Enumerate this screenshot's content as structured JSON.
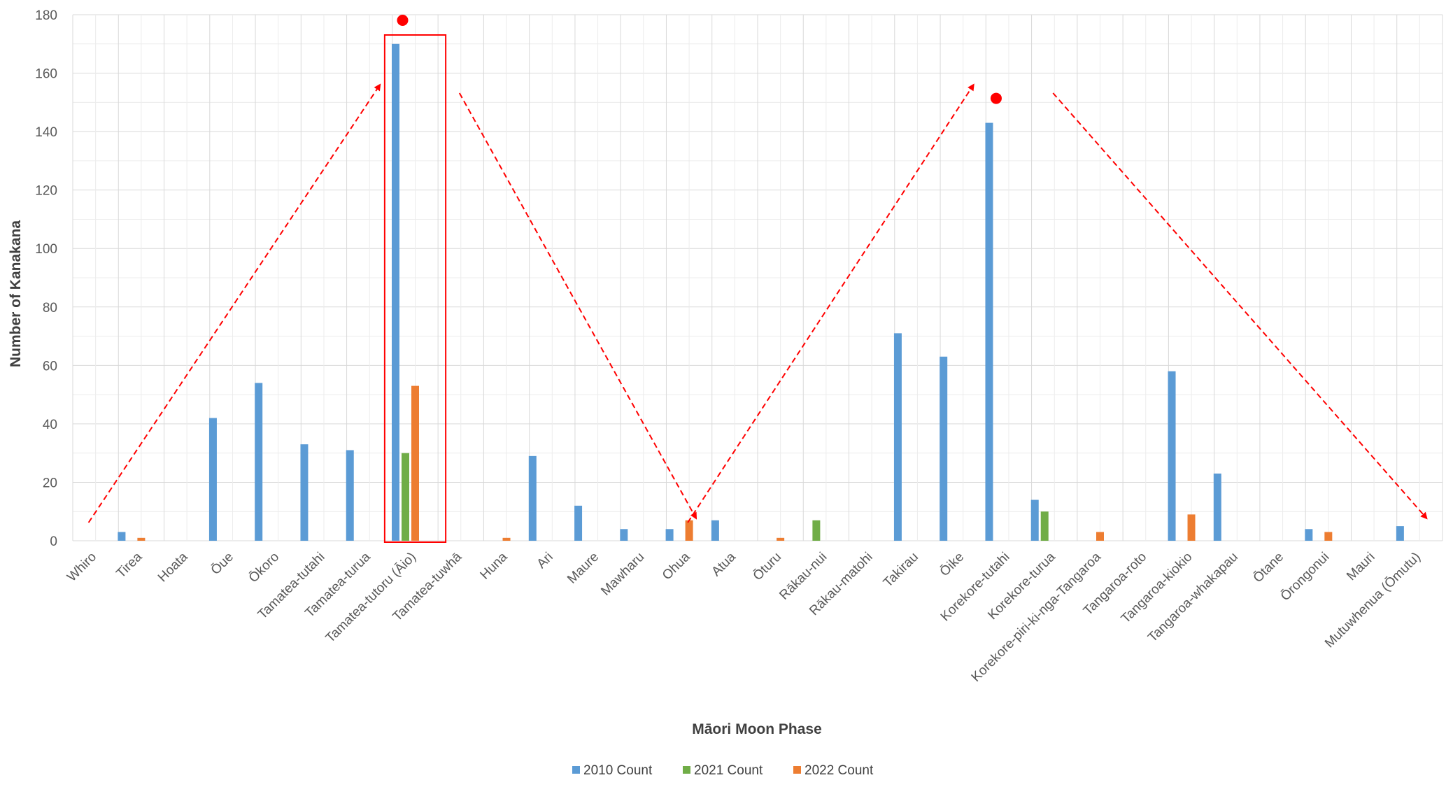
{
  "chart_data": {
    "type": "bar",
    "title": "",
    "xlabel": "Māori Moon Phase",
    "ylabel": "Number of Kanakana",
    "ylim": [
      0,
      180
    ],
    "yticks": [
      0,
      20,
      40,
      60,
      80,
      100,
      120,
      140,
      160,
      180
    ],
    "grid": true,
    "legend_position": "bottom",
    "categories": [
      "Whiro",
      "Tirea",
      "Hoata",
      "Ōue",
      "Ōkoro",
      "Tamatea-tutahi",
      "Tamatea-turua",
      "Tamatea-tutoru (Āio)",
      "Tamatea-tuwhā",
      "Huna",
      "Ari",
      "Maure",
      "Mawharu",
      "Ohua",
      "Atua",
      "Ōturu",
      "Rākau-nui",
      "Rākau-matohi",
      "Takirau",
      "Ōike",
      "Korekore-tutahi",
      "Korekore-turua",
      "Korekore-piri-ki-nga-Tangaroa",
      "Tangaroa-roto",
      "Tangaroa-kiokio",
      "Tangaroa-whakapau",
      "Ōtane",
      "Ōrongonui",
      "Mauri",
      "Mutuwhenua (Ōmutu)"
    ],
    "series": [
      {
        "name": "2010 Count",
        "color": "#5b9bd5",
        "values": [
          0,
          3,
          0,
          42,
          54,
          33,
          31,
          170,
          0,
          0,
          29,
          12,
          4,
          4,
          7,
          0,
          0,
          0,
          71,
          63,
          143,
          14,
          0,
          0,
          58,
          23,
          0,
          4,
          0,
          5
        ]
      },
      {
        "name": "2021 Count",
        "color": "#70ad47",
        "values": [
          0,
          0,
          0,
          0,
          0,
          0,
          0,
          30,
          0,
          0,
          0,
          0,
          0,
          0,
          0,
          0,
          7,
          0,
          0,
          0,
          0,
          10,
          0,
          0,
          0,
          0,
          0,
          0,
          0,
          0
        ]
      },
      {
        "name": "2022 Count",
        "color": "#ed7d31",
        "values": [
          0,
          1,
          0,
          0,
          0,
          0,
          0,
          53,
          0,
          1,
          0,
          0,
          0,
          7,
          0,
          1,
          0,
          0,
          0,
          0,
          0,
          0,
          3,
          0,
          9,
          0,
          0,
          3,
          0,
          0
        ]
      }
    ],
    "annotations": {
      "color": "#ff0000",
      "highlight_box_category": "Tamatea-tutoru (Āio)",
      "peak_markers": [
        "Tamatea-tutoru (Āio)",
        "Korekore-tutahi"
      ],
      "trend_arrows": [
        {
          "from": "Whiro",
          "to": "Tamatea-turua",
          "direction": "up"
        },
        {
          "from": "Tamatea-tuwhā",
          "to": "Ohua",
          "direction": "down"
        },
        {
          "from": "Ohua",
          "to": "Ōike",
          "direction": "up"
        },
        {
          "from": "Korekore-turua",
          "to": "Mutuwhenua (Ōmutu)",
          "direction": "down"
        }
      ]
    }
  }
}
